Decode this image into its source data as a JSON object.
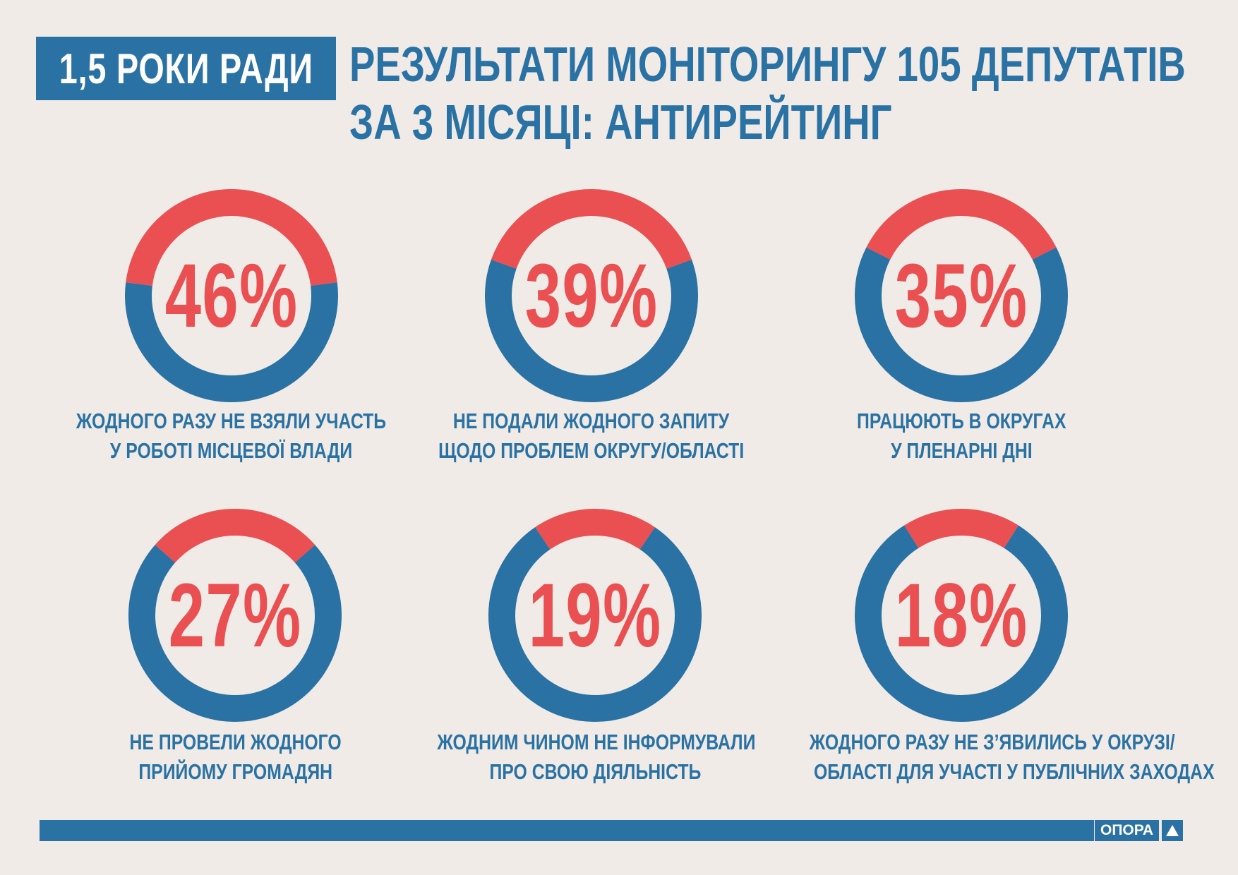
{
  "header": {
    "badge": "1,5 РОКИ РАДИ",
    "title_line1": "РЕЗУЛЬТАТИ МОНІТОРИНГУ 105 ДЕПУТАТІВ",
    "title_line2": "ЗА 3 МІСЯЦІ: АНТИРЕЙТИНГ"
  },
  "colors": {
    "primary": "#2a72a4",
    "accent": "#ea4f52",
    "background": "#f0ebe6"
  },
  "chart_data": [
    {
      "type": "pie",
      "value": 46,
      "label": "46%",
      "text_line1": "ЖОДНОГО РАЗУ НЕ ВЗЯЛИ УЧАСТЬ",
      "text_line2": "У РОБОТІ МІСЦЕВОЇ ВЛАДИ"
    },
    {
      "type": "pie",
      "value": 39,
      "label": "39%",
      "text_line1": "НЕ ПОДАЛИ ЖОДНОГО ЗАПИТУ",
      "text_line2": "ЩОДО ПРОБЛЕМ ОКРУГУ/ОБЛАСТІ"
    },
    {
      "type": "pie",
      "value": 35,
      "label": "35%",
      "text_line1": "ПРАЦЮЮТЬ В ОКРУГАХ",
      "text_line2": "У ПЛЕНАРНІ ДНІ"
    },
    {
      "type": "pie",
      "value": 27,
      "label": "27%",
      "text_line1": "НЕ ПРОВЕЛИ ЖОДНОГО",
      "text_line2": "ПРИЙОМУ ГРОМАДЯН"
    },
    {
      "type": "pie",
      "value": 19,
      "label": "19%",
      "text_line1": "ЖОДНИМ ЧИНОМ НЕ ІНФОРМУВАЛИ",
      "text_line2": "ПРО СВОЮ ДІЯЛЬНІСТЬ"
    },
    {
      "type": "pie",
      "value": 18,
      "label": "18%",
      "text_line1": "ЖОДНОГО РАЗУ НЕ З’ЯВИЛИСЬ У ОКРУЗІ/",
      "text_line2": "ОБЛАСТІ ДЛЯ УЧАСТІ У ПУБЛІЧНИХ ЗАХОДАХ"
    }
  ],
  "footer": {
    "logo_text": "ОПОРА"
  }
}
